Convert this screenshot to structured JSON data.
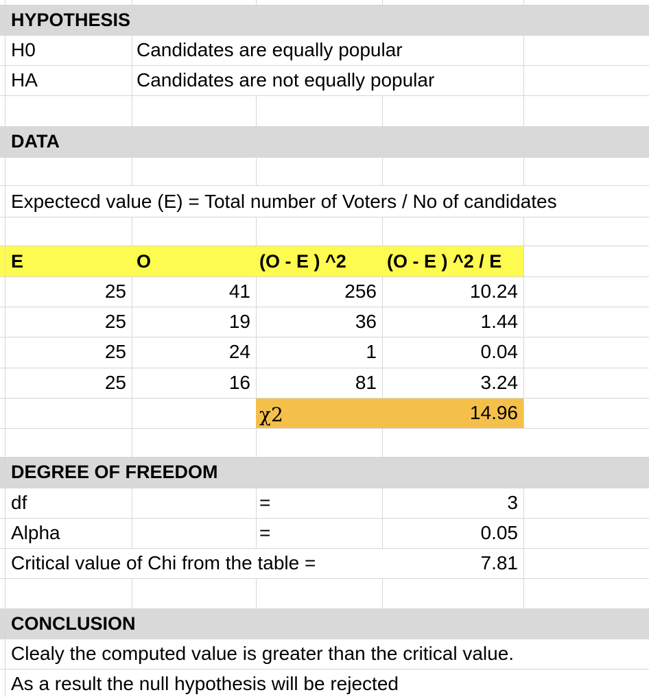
{
  "hypothesis": {
    "heading": "HYPOTHESIS",
    "h0_label": "H0",
    "h0_text": "Candidates are equally popular",
    "ha_label": "HA",
    "ha_text": "Candidates are not equally popular"
  },
  "data_section": {
    "heading": "DATA",
    "formula": "Expectecd value (E) = Total number of Voters / No of candidates"
  },
  "table": {
    "headers": [
      "E",
      "O",
      "(O - E ) ^2",
      "(O - E ) ^2 / E"
    ],
    "rows": [
      [
        "25",
        "41",
        "256",
        "10.24"
      ],
      [
        "25",
        "19",
        "36",
        "1.44"
      ],
      [
        "25",
        "24",
        "1",
        "0.04"
      ],
      [
        "25",
        "16",
        "81",
        "3.24"
      ]
    ],
    "chi_label": "χ2",
    "chi_value": "14.96"
  },
  "dof": {
    "heading": "DEGREE OF FREEDOM",
    "df_label": "df",
    "df_eq": "=",
    "df_value": "3",
    "alpha_label": "Alpha",
    "alpha_eq": "=",
    "alpha_value": "0.05",
    "critical_label": "Critical value of Chi from the table =",
    "critical_value": "7.81"
  },
  "conclusion": {
    "heading": "CONCLUSION",
    "line1": "Clealy the computed value is greater than the critical value.",
    "line2": "As a result the null hypothesis will be rejected"
  },
  "colors": {
    "section_gray": "#d9d9d9",
    "header_yellow": "#fdfb50",
    "chi_orange": "#f5c04a",
    "gridline": "#d6d6d6"
  }
}
